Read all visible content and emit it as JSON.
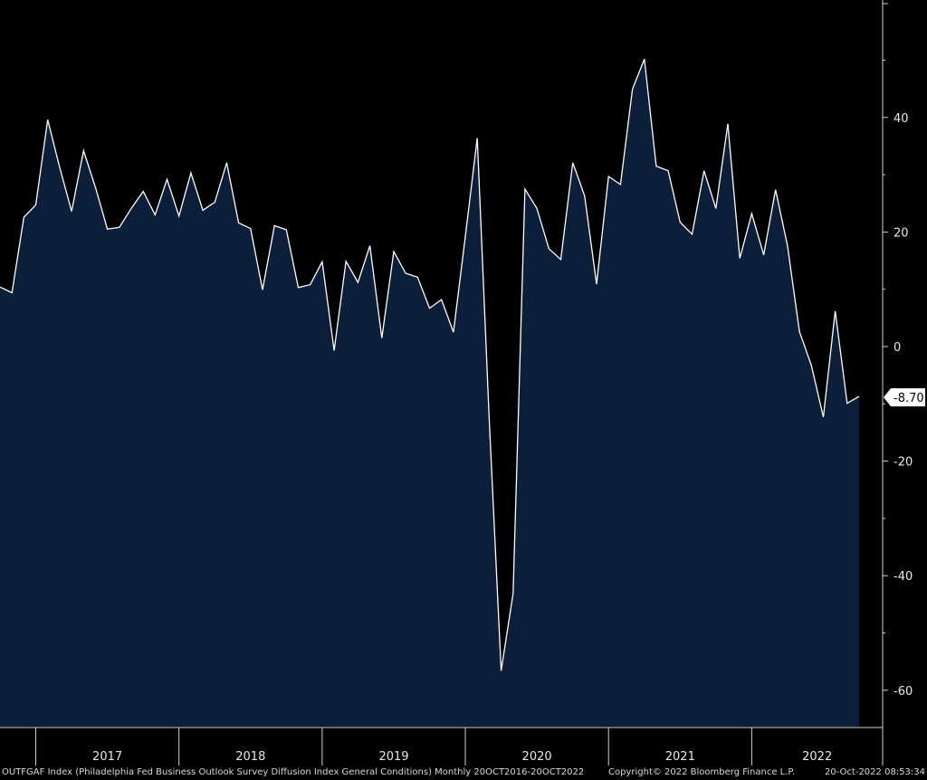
{
  "chart_data": {
    "type": "area",
    "ylim": [
      -67,
      60
    ],
    "y_ticks": [
      40,
      20,
      0,
      -20,
      -40,
      -60
    ],
    "year_labels": [
      "2017",
      "2018",
      "2019",
      "2020",
      "2021",
      "2022"
    ],
    "start": "2016-10",
    "series": [
      {
        "values": [
          10.4,
          9.4,
          22.6,
          24.7,
          39.6,
          31.3,
          23.6,
          34.2,
          27.8,
          20.5,
          20.8,
          24.1,
          27.1,
          23.0,
          29.2,
          22.8,
          30.3,
          23.8,
          25.2,
          32.1,
          21.6,
          20.6,
          9.9,
          21.1,
          20.4,
          10.3,
          10.8,
          14.8,
          -0.7,
          14.9,
          11.2,
          17.6,
          1.5,
          16.6,
          12.8,
          12.1,
          6.7,
          8.2,
          2.5,
          19.2,
          36.4,
          -12.7,
          -56.6,
          -43.1,
          27.5,
          24.1,
          17.1,
          15.2,
          32.1,
          26.3,
          10.9,
          29.7,
          28.3,
          44.9,
          50.2,
          31.5,
          30.7,
          21.7,
          19.6,
          30.7,
          24.1,
          38.9,
          15.4,
          23.2,
          16.0,
          27.4,
          17.6,
          2.6,
          -3.3,
          -12.3,
          6.2,
          -9.9,
          -8.7
        ]
      }
    ],
    "last_value_label": "-8.70",
    "x_axis_note": "Monthly, Oct 2016 to Oct 2022"
  },
  "footer": {
    "left": "OUTFGAF Index (Philadelphia Fed Business Outlook Survey Diffusion Index General Conditions) Monthly 20OCT2016-20OCT2022",
    "middle": "Copyright© 2022 Bloomberg Finance L.P.",
    "right": "20-Oct-2022 08:53:34"
  },
  "colors": {
    "background": "#000000",
    "area_fill": "#0b1f3a",
    "line": "#ffffff",
    "axis": "#d0d0d0",
    "label_bg": "#ffffff",
    "label_text": "#000000"
  }
}
